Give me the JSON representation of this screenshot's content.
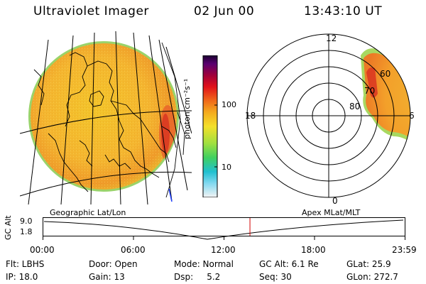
{
  "header": {
    "title": "Ultraviolet Imager",
    "date": "02 Jun 00",
    "time": "13:43:10 UT"
  },
  "colorbar": {
    "unit_label": "photon cm⁻²s⁻¹",
    "tick_100": "100",
    "tick_10": "10",
    "scale": "log"
  },
  "polar_plot": {
    "label_12": "12",
    "label_18": "18",
    "label_6": "6",
    "label_0": "0",
    "label_80": "80",
    "label_70": "70",
    "label_60": "60"
  },
  "orbit_plot": {
    "left_caption": "Geographic Lat/Lon",
    "right_caption": "Apex MLat/MLT",
    "yaxis_label": "GC Alt",
    "ytick_top": "9.0",
    "ytick_bottom": "1.8",
    "xticks": [
      "00:00",
      "06:00",
      "12:00",
      "18:00",
      "23:59"
    ],
    "current_time_marker_hours": 13.72,
    "marker_color": "#d00000"
  },
  "status": {
    "flt": "Flt: LBHS",
    "door": "Door: Open",
    "mode": "Mode: Normal",
    "gc_alt": "GC Alt: 6.1 Re",
    "glat": "GLat:  25.9",
    "ip": "IP: 18.0",
    "gain": "Gain: 13",
    "dsp": "Dsp:     5.2",
    "seq": "Seq: 30",
    "glon": "GLon: 272.7"
  }
}
